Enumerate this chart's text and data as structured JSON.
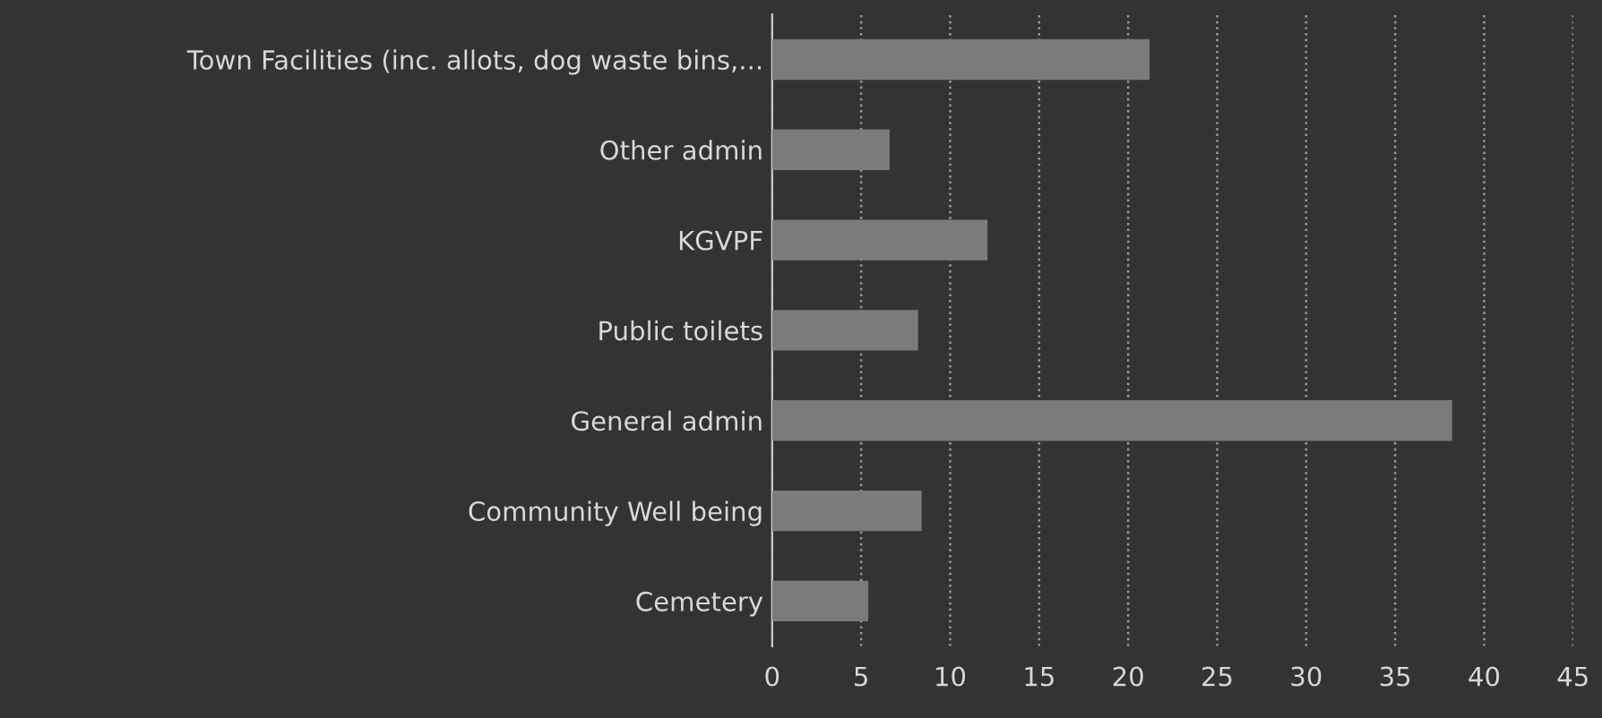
{
  "chart_data": {
    "type": "bar",
    "orientation": "horizontal",
    "categories": [
      "Town Facilities (inc. allots, dog waste bins,...",
      "Other admin",
      "KGVPF",
      "Public toilets",
      "General admin",
      "Community Well being",
      "Cemetery"
    ],
    "values": [
      21.2,
      6.6,
      12.1,
      8.2,
      38.2,
      8.4,
      5.4
    ],
    "color": "#7b7b7b",
    "xlim": [
      0,
      45
    ],
    "xticks": [
      0,
      5,
      10,
      15,
      20,
      25,
      30,
      35,
      40,
      45
    ],
    "grid": "x"
  }
}
